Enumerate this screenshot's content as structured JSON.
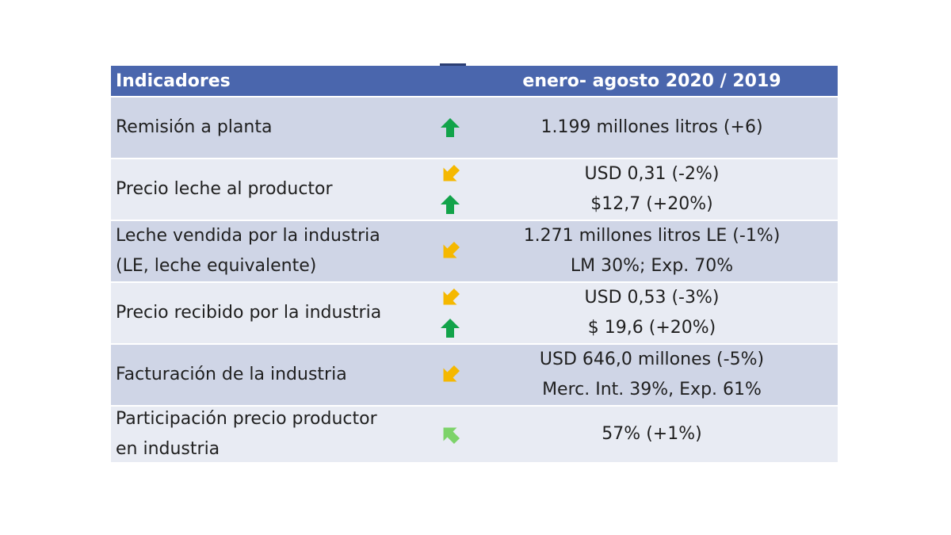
{
  "header": {
    "col_indicators": "Indicadores",
    "col_period": "enero- agosto 2020 / 2019"
  },
  "colors": {
    "header_bg": "#4a66ad",
    "row_dark": "#cfd5e6",
    "row_light": "#e8ebf3",
    "arrow_up": "#12a34a",
    "arrow_down": "#f5b800",
    "arrow_diag_up": "#7dd36a"
  },
  "rows": [
    {
      "indicator_lines": [
        "Remisión a planta"
      ],
      "trends": [
        "up-arrow-icon"
      ],
      "values": [
        "1.199 millones litros (+6)"
      ]
    },
    {
      "indicator_lines": [
        "Precio leche al productor"
      ],
      "trends": [
        "down-left-arrow-icon",
        "up-arrow-icon"
      ],
      "values": [
        "USD 0,31 (-2%)",
        "$12,7 (+20%)"
      ]
    },
    {
      "indicator_lines": [
        "Leche vendida por la industria",
        "(LE, leche equivalente)"
      ],
      "trends": [
        "down-left-arrow-icon"
      ],
      "values": [
        "1.271 millones litros LE (-1%)",
        "LM 30%; Exp. 70%"
      ]
    },
    {
      "indicator_lines": [
        "Precio recibido por la industria"
      ],
      "trends": [
        "down-left-arrow-icon",
        "up-arrow-icon"
      ],
      "values": [
        "USD 0,53 (-3%)",
        "$ 19,6 (+20%)"
      ]
    },
    {
      "indicator_lines": [
        "Facturación de la industria"
      ],
      "trends": [
        "down-left-arrow-icon"
      ],
      "values": [
        "USD 646,0 millones (-5%)",
        "Merc. Int. 39%, Exp. 61%"
      ]
    },
    {
      "indicator_lines": [
        "Participación precio productor",
        "en industria"
      ],
      "trends": [
        "up-left-arrow-icon"
      ],
      "values": [
        "57% (+1%)"
      ]
    }
  ]
}
